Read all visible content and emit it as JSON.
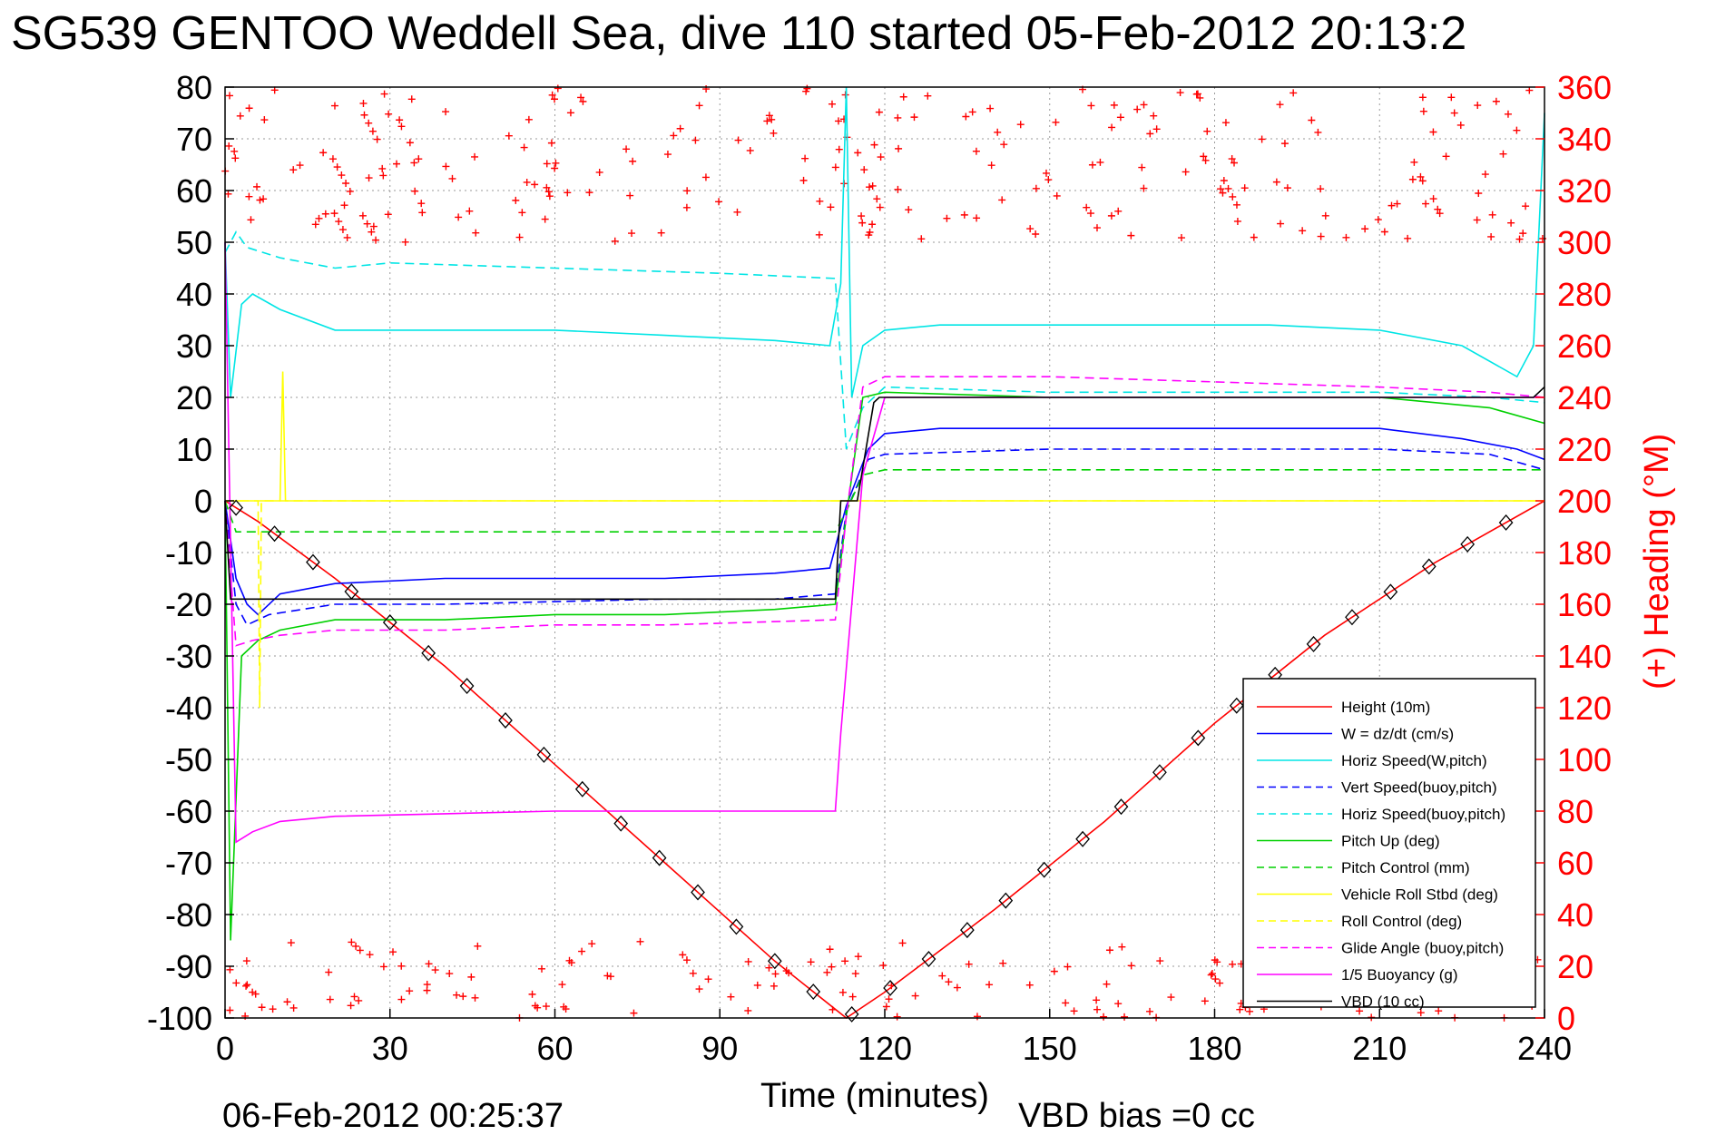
{
  "chart_data": {
    "type": "line",
    "title": "SG539 GENTOO Weddell Sea, dive 110 started 05-Feb-2012 20:13:2",
    "xlabel": "Time (minutes)",
    "ylabel": "",
    "ylabel_right": "(+) Heading (°M)",
    "xlim": [
      0,
      240
    ],
    "ylim": [
      -100,
      80
    ],
    "ylim_right": [
      0,
      360
    ],
    "xticks": [
      "0",
      "30",
      "60",
      "90",
      "120",
      "150",
      "180",
      "210",
      "240"
    ],
    "yticks": [
      "80",
      "70",
      "60",
      "50",
      "40",
      "30",
      "20",
      "10",
      "0",
      "-10",
      "-20",
      "-30",
      "-40",
      "-50",
      "-60",
      "-70",
      "-80",
      "-90",
      "-100"
    ],
    "yticks_right": [
      "360",
      "340",
      "320",
      "300",
      "280",
      "260",
      "240",
      "220",
      "200",
      "180",
      "160",
      "140",
      "120",
      "100",
      "80",
      "60",
      "40",
      "20",
      "0"
    ],
    "grid": true,
    "legend_position": "bottom-right",
    "footer_left": "06-Feb-2012 00:25:37",
    "footer_right": "VBD bias =0 cc",
    "series": [
      {
        "name": "Height (10m)",
        "color": "#ff0000",
        "dash": "solid",
        "x": [
          0,
          6,
          20,
          40,
          60,
          80,
          100,
          113,
          120,
          140,
          160,
          180,
          200,
          220,
          240
        ],
        "y": [
          0,
          -4,
          -15,
          -32,
          -51,
          -70,
          -89,
          -100,
          -95,
          -79,
          -62,
          -43,
          -26,
          -12,
          0
        ]
      },
      {
        "name": "W = dz/dt (cm/s)",
        "color": "#0000ff",
        "dash": "solid",
        "x": [
          0,
          2,
          4,
          6,
          10,
          20,
          40,
          60,
          80,
          100,
          110,
          112,
          113,
          117,
          120,
          130,
          150,
          170,
          190,
          210,
          225,
          235,
          240
        ],
        "y": [
          0,
          -15,
          -20,
          -22,
          -18,
          -16,
          -15,
          -15,
          -15,
          -14,
          -13,
          -5,
          -1,
          10,
          13,
          14,
          14,
          14,
          14,
          14,
          12,
          10,
          8
        ]
      },
      {
        "name": "Horiz Speed(W,pitch)",
        "color": "#00e5e5",
        "dash": "solid",
        "x": [
          0,
          1,
          3,
          5,
          10,
          20,
          40,
          60,
          80,
          100,
          110,
          112,
          113,
          114,
          116,
          120,
          130,
          150,
          170,
          190,
          210,
          225,
          235,
          238,
          240
        ],
        "y": [
          50,
          20,
          38,
          40,
          37,
          33,
          33,
          33,
          32,
          31,
          30,
          42,
          80,
          20,
          30,
          33,
          34,
          34,
          34,
          34,
          33,
          30,
          24,
          30,
          75
        ]
      },
      {
        "name": "Vert Speed(buoy,pitch)",
        "color": "#0000ff",
        "dash": "dashed",
        "x": [
          0,
          2,
          4,
          8,
          20,
          40,
          60,
          80,
          100,
          111,
          113,
          117,
          120,
          150,
          180,
          210,
          230,
          240
        ],
        "y": [
          0,
          -20,
          -24,
          -22,
          -20,
          -20,
          -19.5,
          -19,
          -19,
          -18,
          -2,
          8,
          9,
          10,
          10,
          10,
          9,
          6
        ]
      },
      {
        "name": "Horiz Speed(buoy,pitch)",
        "color": "#00e5e5",
        "dash": "dashed",
        "x": [
          0,
          2,
          4,
          10,
          20,
          30,
          60,
          90,
          111,
          113,
          116,
          120,
          150,
          180,
          210,
          230,
          240
        ],
        "y": [
          48,
          52,
          49,
          47,
          45,
          46,
          45,
          44,
          43,
          10,
          18,
          22,
          21,
          21,
          21,
          20,
          19
        ]
      },
      {
        "name": "Pitch Up (deg)",
        "color": "#00d000",
        "dash": "solid",
        "x": [
          0,
          1,
          3,
          6,
          10,
          20,
          40,
          60,
          80,
          100,
          111,
          113,
          116,
          120,
          150,
          180,
          210,
          230,
          240
        ],
        "y": [
          0,
          -85,
          -30,
          -27,
          -25,
          -23,
          -23,
          -22,
          -22,
          -21,
          -20,
          -3,
          20,
          21,
          20,
          20,
          20,
          18,
          15
        ]
      },
      {
        "name": "Pitch Control (mm)",
        "color": "#00d000",
        "dash": "dashed",
        "x": [
          0,
          2,
          6,
          20,
          40,
          60,
          80,
          111,
          113,
          116,
          120,
          150,
          180,
          210,
          240
        ],
        "y": [
          0,
          -6,
          -6,
          -6,
          -6,
          -6,
          -6,
          -6,
          -2,
          5,
          6,
          6,
          6,
          6,
          6
        ]
      },
      {
        "name": "Vehicle Roll Stbd (deg)",
        "color": "#ffff00",
        "dash": "solid",
        "x": [
          0,
          10,
          10.5,
          11,
          30,
          60,
          90,
          112,
          113,
          120,
          150,
          180,
          210,
          240
        ],
        "y": [
          0,
          0,
          25,
          0,
          0,
          0,
          0,
          0,
          0,
          0,
          0,
          0,
          0,
          0
        ]
      },
      {
        "name": "Roll Control (deg)",
        "color": "#ffff00",
        "dash": "dashed",
        "x": [
          0,
          6,
          6.3,
          6.6,
          30,
          60,
          90,
          112,
          120,
          150,
          180,
          210,
          240
        ],
        "y": [
          0,
          0,
          -40,
          0,
          0,
          0,
          0,
          0,
          0,
          0,
          0,
          0,
          0
        ]
      },
      {
        "name": "Glide Angle (buoy,pitch)",
        "color": "#ff00ff",
        "dash": "dashed",
        "x": [
          0,
          2,
          5,
          10,
          20,
          40,
          60,
          80,
          111,
          113,
          116,
          120,
          150,
          180,
          210,
          230,
          240
        ],
        "y": [
          0,
          -28,
          -27,
          -26,
          -25,
          -25,
          -24,
          -24,
          -23,
          -3,
          22,
          24,
          24,
          23,
          22,
          21,
          20
        ]
      },
      {
        "name": "1/5 Buoyancy (g)",
        "color": "#ff00ff",
        "dash": "solid",
        "x": [
          0,
          2,
          5,
          10,
          20,
          40,
          60,
          80,
          111,
          112,
          116,
          120,
          150,
          180,
          210,
          230,
          240
        ],
        "y": [
          50,
          -66,
          -64,
          -62,
          -61,
          -60.5,
          -60,
          -60,
          -60,
          -45,
          5,
          20,
          20,
          20,
          20,
          20,
          20
        ]
      },
      {
        "name": "VBD (10 cc)",
        "color": "#000000",
        "dash": "solid",
        "x": [
          0,
          1,
          4,
          110,
          111,
          112,
          115,
          118,
          119,
          238,
          240
        ],
        "y": [
          0,
          -19,
          -19,
          -19,
          -19,
          0,
          0,
          19,
          20,
          20,
          22
        ]
      }
    ]
  }
}
